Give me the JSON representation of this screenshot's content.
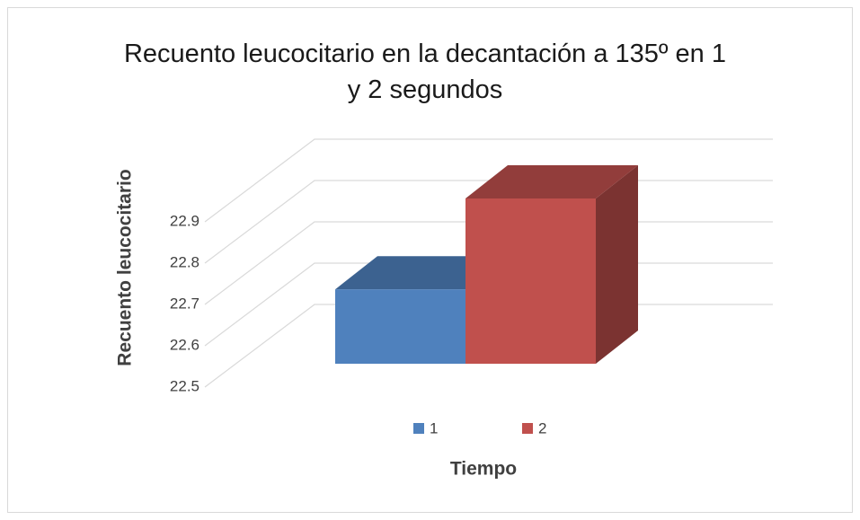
{
  "chart_data": {
    "type": "bar",
    "title": "Recuento leucocitario en la decantación a 135º en 1 y 2 segundos",
    "y_label": "Recuento leucocitario",
    "x_label": "Tiempo",
    "categories": [
      null
    ],
    "series": [
      {
        "name": "1",
        "color": "#4f81bd",
        "values": [
          22.68
        ]
      },
      {
        "name": "2",
        "color": "#c0504d",
        "values": [
          22.9
        ]
      }
    ],
    "ylim": [
      22.5,
      22.9
    ],
    "yticks": [
      22.5,
      22.6,
      22.7,
      22.8,
      22.9
    ],
    "grid": true,
    "legend": "bottom"
  }
}
